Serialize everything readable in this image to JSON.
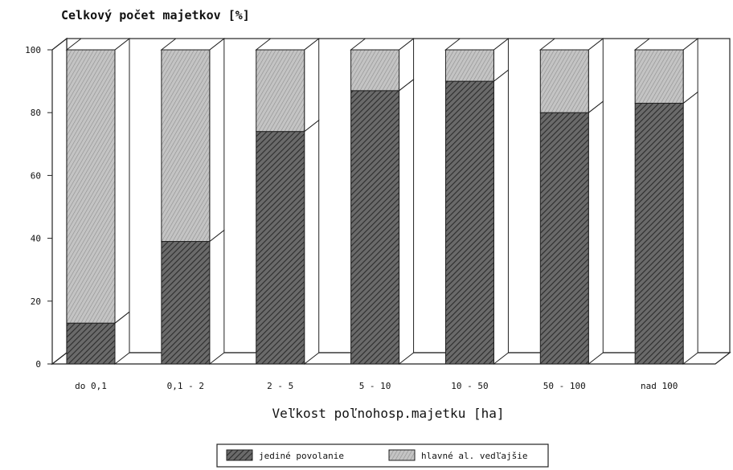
{
  "chart_data": {
    "type": "bar",
    "stacked": true,
    "three_d": true,
    "title": "Celkový počet majetkov [%]",
    "xlabel": "Veľkost poľnohosp.majetku [ha]",
    "ylabel": "",
    "ylim": [
      0,
      100
    ],
    "yticks": [
      0,
      20,
      40,
      60,
      80,
      100
    ],
    "categories": [
      "do 0,1",
      "0,1 - 2",
      "2 - 5",
      "5 - 10",
      "10 - 50",
      "50 - 100",
      "nad 100"
    ],
    "series": [
      {
        "name": "jediné povolanie",
        "values": [
          13,
          39,
          74,
          87,
          90,
          80,
          83
        ],
        "color": "#555555"
      },
      {
        "name": "hlavné al. vedľajšie",
        "values": [
          87,
          61,
          26,
          13,
          10,
          20,
          17
        ],
        "color": "#b8b8b8"
      }
    ],
    "grid": true,
    "legend": "bottom-center"
  }
}
